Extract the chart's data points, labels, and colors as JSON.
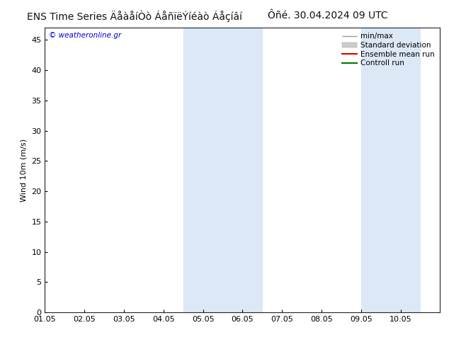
{
  "title_left": "ENS Time Series ÄåàåíÒò ÁåñïëÝíéàò Áåçíâí",
  "title_right": "Ôñé. 30.04.2024 09 UTC",
  "ylabel": "Wind 10m (m/s)",
  "watermark": "© weatheronline.gr",
  "xlim_left": 0,
  "xlim_right": 10,
  "ylim_bottom": 0,
  "ylim_top": 47,
  "xtick_positions": [
    0,
    1,
    2,
    3,
    4,
    5,
    6,
    7,
    8,
    9
  ],
  "xtick_labels": [
    "01.05",
    "02.05",
    "03.05",
    "04.05",
    "05.05",
    "06.05",
    "07.05",
    "08.05",
    "09.05",
    "10.05"
  ],
  "ytick_values": [
    0,
    5,
    10,
    15,
    20,
    25,
    30,
    35,
    40,
    45
  ],
  "shaded_regions": [
    {
      "xstart": 3.5,
      "xend": 5.5,
      "color": "#dce8f5"
    },
    {
      "xstart": 8.0,
      "xend": 9.5,
      "color": "#dce8f5"
    }
  ],
  "legend_items": [
    {
      "label": "min/max",
      "color": "#999999",
      "lw": 1.0,
      "style": "minmax"
    },
    {
      "label": "Standard deviation",
      "color": "#cccccc",
      "lw": 5,
      "style": "band"
    },
    {
      "label": "Ensemble mean run",
      "color": "#dd0000",
      "lw": 1.5,
      "style": "line"
    },
    {
      "label": "Controll run",
      "color": "#007700",
      "lw": 1.5,
      "style": "line"
    }
  ],
  "bg_color": "#ffffff",
  "plot_bg_color": "#ffffff",
  "title_fontsize": 10,
  "axis_fontsize": 8,
  "legend_fontsize": 7.5,
  "watermark_color": "#0000cc",
  "watermark_fontsize": 7.5
}
